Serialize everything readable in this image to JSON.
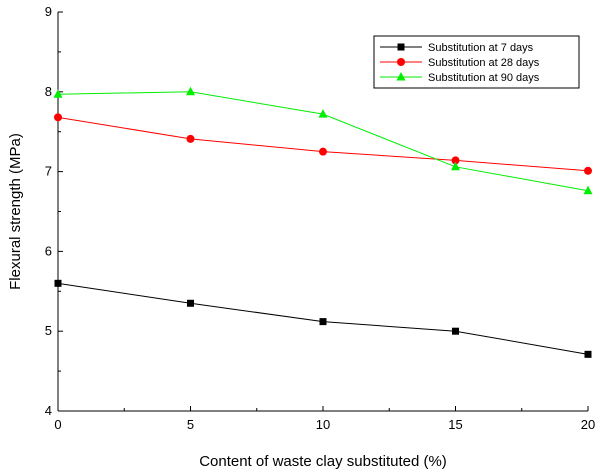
{
  "chart_data": {
    "type": "line",
    "title": "",
    "xlabel": "Content of waste clay substituted (%)",
    "ylabel": "Flexural strength (MPa)",
    "xlim": [
      0,
      20
    ],
    "ylim": [
      4,
      9
    ],
    "xticks": [
      0,
      5,
      10,
      15,
      20
    ],
    "yticks": [
      4,
      5,
      6,
      7,
      8,
      9
    ],
    "grid": false,
    "legend_position": "top-right",
    "x": [
      0,
      5,
      10,
      15,
      20
    ],
    "series": [
      {
        "name": "Substitution at 7 days",
        "values": [
          5.6,
          5.35,
          5.12,
          5.0,
          4.71
        ],
        "color": "#000000",
        "marker": "square"
      },
      {
        "name": "Substitution at 28 days",
        "values": [
          7.68,
          7.41,
          7.25,
          7.14,
          7.01
        ],
        "color": "#ff0000",
        "marker": "circle"
      },
      {
        "name": "Substitution at 90 days",
        "values": [
          7.97,
          8.0,
          7.72,
          7.06,
          6.76
        ],
        "color": "#00ee00",
        "marker": "triangle"
      }
    ]
  }
}
